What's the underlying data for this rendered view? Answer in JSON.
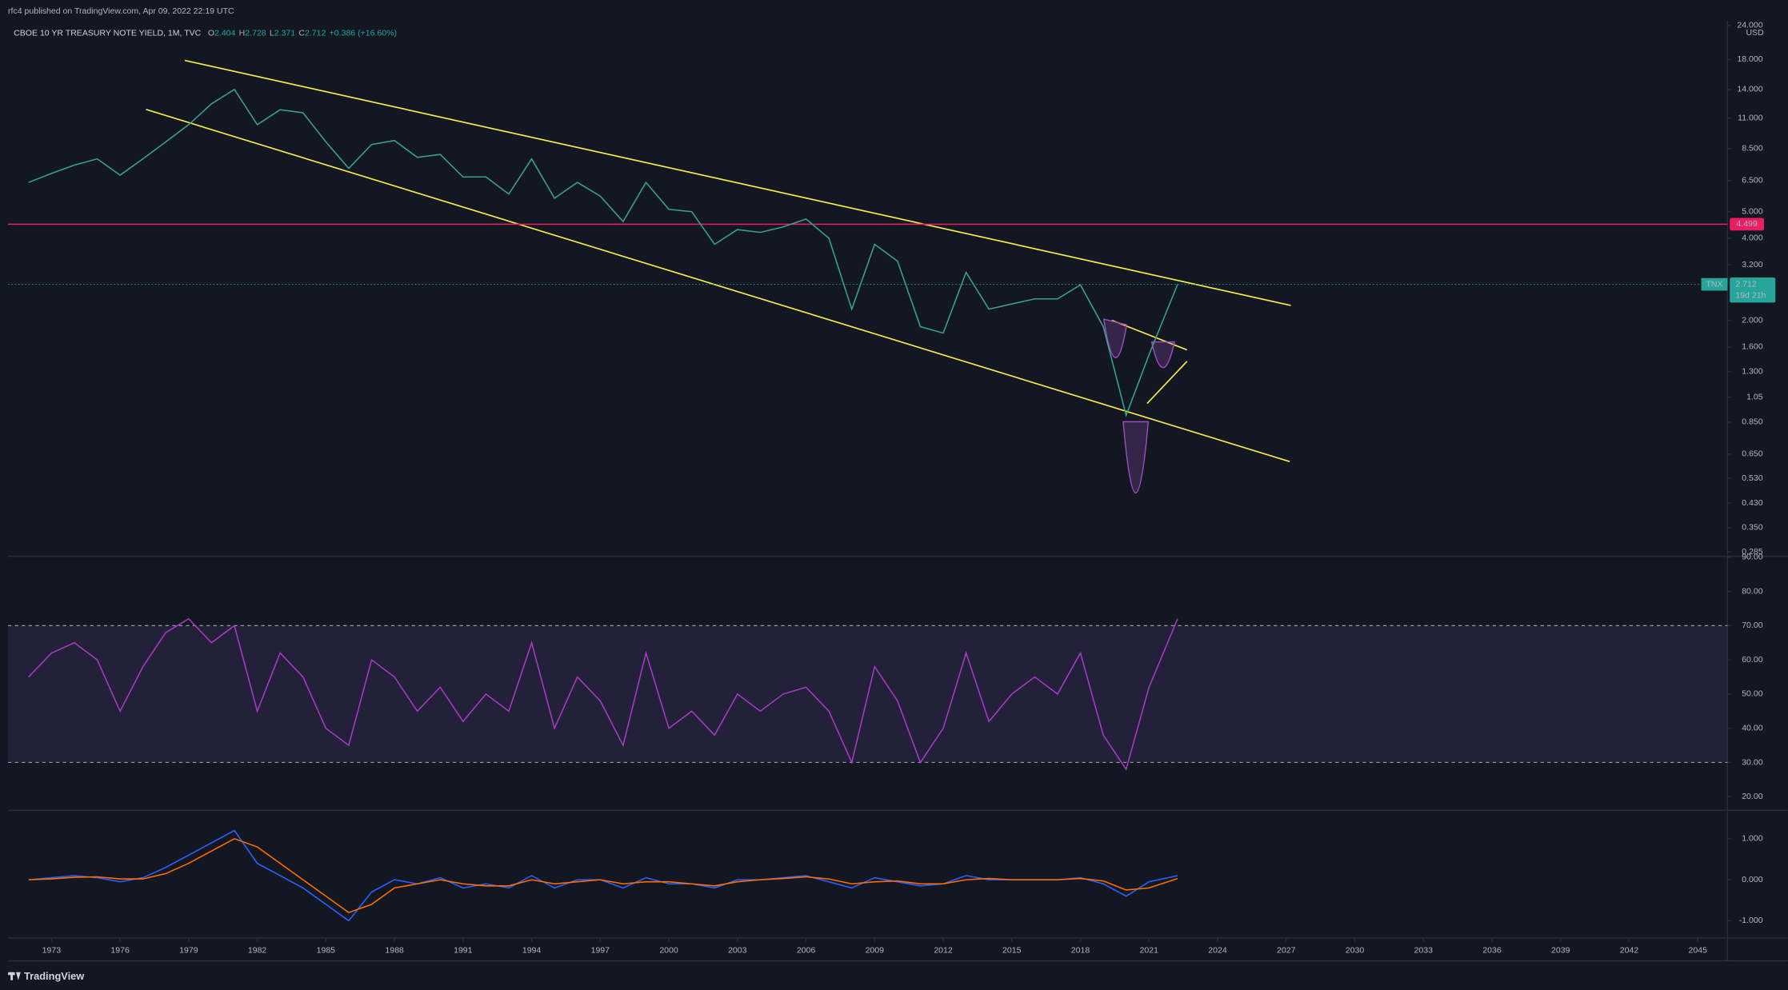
{
  "header": {
    "publisher": "rfc4 published on TradingView.com, Apr 09, 2022 22:19 UTC",
    "symbol": "CBOE 10 YR TREASURY NOTE YIELD, 1M, TVC",
    "ohlc": [
      {
        "label": "O",
        "value": 2.404
      },
      {
        "label": "H",
        "value": 2.728
      },
      {
        "label": "L",
        "value": 2.371
      },
      {
        "label": "C",
        "value": 2.712
      }
    ],
    "change": "+0.386 (+16.60%)"
  },
  "footer": {
    "brand": "TradingView"
  },
  "chart_data": [
    {
      "type": "line",
      "log_scale": true,
      "grid": false,
      "currency": "USD",
      "x": [
        1972,
        1973,
        1974,
        1975,
        1976,
        1977,
        1978,
        1979,
        1980,
        1981,
        1982,
        1983,
        1984,
        1985,
        1986,
        1987,
        1988,
        1989,
        1990,
        1991,
        1992,
        1993,
        1994,
        1995,
        1996,
        1997,
        1998,
        1999,
        2000,
        2001,
        2002,
        2003,
        2004,
        2005,
        2006,
        2007,
        2008,
        2009,
        2010,
        2011,
        2012,
        2013,
        2014,
        2015,
        2016,
        2017,
        2018,
        2019,
        2020,
        2021,
        2022.25
      ],
      "series": [
        {
          "color": "#3aa08e",
          "values": [
            6.4,
            6.9,
            7.4,
            7.8,
            6.8,
            7.8,
            9.0,
            10.4,
            12.4,
            14.0,
            10.4,
            11.8,
            11.5,
            9.0,
            7.2,
            8.8,
            9.1,
            7.9,
            8.1,
            6.7,
            6.7,
            5.8,
            7.8,
            5.6,
            6.4,
            5.7,
            4.6,
            6.4,
            5.1,
            5.0,
            3.8,
            4.3,
            4.2,
            4.4,
            4.7,
            4.0,
            2.2,
            3.8,
            3.3,
            1.9,
            1.8,
            3.0,
            2.2,
            2.3,
            2.4,
            2.4,
            2.7,
            1.9,
            0.9,
            1.5,
            2.712
          ]
        }
      ],
      "last_label": {
        "symbol": "TNX",
        "countdown": "19d 21h",
        "color": "#26a69a"
      },
      "hline": {
        "value": 4.499,
        "color": "#e91e63"
      },
      "xlim": [
        1971.1,
        2046.3
      ],
      "ylim": [
        0.275,
        25
      ],
      "yticks": [
        {
          "value": 24,
          "label": "24.000"
        },
        {
          "value": 18,
          "label": "18.000"
        },
        {
          "value": 14,
          "label": "14.000"
        },
        {
          "value": 11,
          "label": "11.000"
        },
        {
          "value": 8.5,
          "label": "8.500"
        },
        {
          "value": 6.5,
          "label": "6.500"
        },
        {
          "value": 5,
          "label": "5.000"
        },
        {
          "value": 4,
          "label": "4.000"
        },
        {
          "value": 3.2,
          "label": "3.200"
        },
        {
          "value": 2,
          "label": "2.000"
        },
        {
          "value": 1.6,
          "label": "1.600"
        },
        {
          "value": 1.3,
          "label": "1.300"
        },
        1.05,
        {
          "value": 0.85,
          "label": "0.850"
        },
        {
          "value": 0.65,
          "label": "0.650"
        },
        {
          "value": 0.53,
          "label": "0.530"
        },
        {
          "value": 0.43,
          "label": "0.430"
        },
        {
          "value": 0.35,
          "label": "0.350"
        },
        0.285
      ]
    },
    {
      "type": "line",
      "grid": false,
      "x": [
        1972,
        1973,
        1974,
        1975,
        1976,
        1977,
        1978,
        1979,
        1980,
        1981,
        1982,
        1983,
        1984,
        1985,
        1986,
        1987,
        1988,
        1989,
        1990,
        1991,
        1992,
        1993,
        1994,
        1995,
        1996,
        1997,
        1998,
        1999,
        2000,
        2001,
        2002,
        2003,
        2004,
        2005,
        2006,
        2007,
        2008,
        2009,
        2010,
        2011,
        2012,
        2013,
        2014,
        2015,
        2016,
        2017,
        2018,
        2019,
        2020,
        2021,
        2022.25
      ],
      "series": [
        {
          "color": "#a23cc0",
          "values": [
            55,
            62,
            65,
            60,
            45,
            58,
            68,
            72,
            65,
            70,
            45,
            62,
            55,
            40,
            35,
            60,
            55,
            45,
            52,
            42,
            50,
            45,
            65,
            40,
            55,
            48,
            35,
            62,
            40,
            45,
            38,
            50,
            45,
            50,
            52,
            45,
            30,
            58,
            48,
            30,
            40,
            62,
            42,
            50,
            55,
            50,
            62,
            38,
            28,
            52,
            72
          ]
        }
      ],
      "bands": [
        30,
        70
      ],
      "band_color": "#7e57c2",
      "xlim": [
        1971.1,
        2046.3
      ],
      "ylim": [
        16,
        90.3
      ],
      "yticks": [
        {
          "value": 90,
          "label": "90.00"
        },
        {
          "value": 80,
          "label": "80.00"
        },
        {
          "value": 70,
          "label": "70.00"
        },
        {
          "value": 60,
          "label": "60.00"
        },
        {
          "value": 50,
          "label": "50.00"
        },
        {
          "value": 40,
          "label": "40.00"
        },
        {
          "value": 30,
          "label": "30.00"
        },
        {
          "value": 20,
          "label": "20.00"
        }
      ]
    },
    {
      "type": "line",
      "grid": false,
      "x": [
        1972,
        1973,
        1974,
        1975,
        1976,
        1977,
        1978,
        1979,
        1980,
        1981,
        1982,
        1983,
        1984,
        1985,
        1986,
        1987,
        1988,
        1989,
        1990,
        1991,
        1992,
        1993,
        1994,
        1995,
        1996,
        1997,
        1998,
        1999,
        2000,
        2001,
        2002,
        2003,
        2004,
        2005,
        2006,
        2007,
        2008,
        2009,
        2010,
        2011,
        2012,
        2013,
        2014,
        2015,
        2016,
        2017,
        2018,
        2019,
        2020,
        2021,
        2022.25
      ],
      "series": [
        {
          "color": "#2962ff",
          "values": [
            0,
            0.05,
            0.1,
            0.05,
            -0.05,
            0.05,
            0.3,
            0.6,
            0.9,
            1.2,
            0.4,
            0.1,
            -0.2,
            -0.6,
            -1.0,
            -0.3,
            0,
            -0.1,
            0.05,
            -0.2,
            -0.1,
            -0.2,
            0.1,
            -0.2,
            0,
            0,
            -0.2,
            0.05,
            -0.1,
            -0.1,
            -0.2,
            0,
            0,
            0.05,
            0.1,
            -0.05,
            -0.2,
            0.05,
            -0.05,
            -0.15,
            -0.1,
            0.1,
            0,
            0,
            0,
            0,
            0.05,
            -0.1,
            -0.4,
            -0.05,
            0.1
          ]
        },
        {
          "color": "#ff6d00",
          "values": [
            0,
            0.02,
            0.06,
            0.07,
            0.02,
            0.02,
            0.15,
            0.4,
            0.7,
            1.0,
            0.8,
            0.4,
            0,
            -0.4,
            -0.8,
            -0.6,
            -0.2,
            -0.1,
            0,
            -0.1,
            -0.15,
            -0.15,
            0,
            -0.1,
            -0.05,
            0,
            -0.1,
            -0.05,
            -0.05,
            -0.1,
            -0.15,
            -0.05,
            0,
            0.03,
            0.07,
            0.02,
            -0.1,
            -0.05,
            -0.03,
            -0.1,
            -0.1,
            0,
            0.03,
            0,
            0,
            0,
            0.03,
            -0.03,
            -0.25,
            -0.2,
            0.03
          ]
        }
      ],
      "xlim": [
        1971.1,
        2046.3
      ],
      "ylim": [
        -1.42,
        1.69
      ],
      "yticks": [
        {
          "value": 1,
          "label": "1.000"
        },
        {
          "value": 0,
          "label": "0.000"
        },
        {
          "value": -1,
          "label": "-1.000"
        }
      ],
      "xticks": [
        1973,
        1976,
        1979,
        1982,
        1985,
        1988,
        1991,
        1994,
        1997,
        2000,
        2003,
        2006,
        2009,
        2012,
        2015,
        2018,
        2021,
        2024,
        2027,
        2030,
        2033,
        2036,
        2039,
        2042,
        2045
      ]
    }
  ]
}
